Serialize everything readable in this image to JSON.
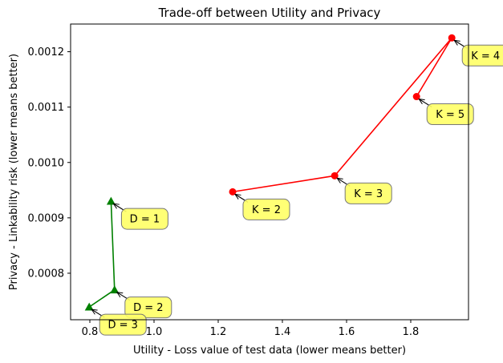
{
  "chart_data": {
    "type": "scatter",
    "title": "Trade-off between Utility and Privacy",
    "xlabel": "Utility - Loss value of test data (lower means better)",
    "ylabel": "Privacy - Linkability risk (lower means better)",
    "xlim": [
      0.74,
      1.98
    ],
    "ylim": [
      0.000716,
      0.00125
    ],
    "xticks": [
      0.8,
      1.0,
      1.2,
      1.4,
      1.6,
      1.8
    ],
    "xtick_labels": [
      "0.8",
      "1.0",
      "1.2",
      "1.4",
      "1.6",
      "1.8"
    ],
    "yticks": [
      0.0008,
      0.0009,
      0.001,
      0.0011,
      0.0012
    ],
    "ytick_labels": [
      "0.0008",
      "0.0009",
      "0.0010",
      "0.0011",
      "0.0012"
    ],
    "grid": false,
    "series": [
      {
        "marker": "circle",
        "color": "#ff0000",
        "points": [
          {
            "x": 1.245,
            "y": 0.000947,
            "label": "K = 2"
          },
          {
            "x": 1.563,
            "y": 0.000976,
            "label": "K = 3"
          },
          {
            "x": 1.928,
            "y": 0.001225,
            "label": "K = 4"
          },
          {
            "x": 1.818,
            "y": 0.001119,
            "label": "K = 5"
          }
        ]
      },
      {
        "marker": "triangle",
        "color": "#008000",
        "points": [
          {
            "x": 0.866,
            "y": 0.00093,
            "label": "D = 1"
          },
          {
            "x": 0.877,
            "y": 0.00077,
            "label": "D = 2"
          },
          {
            "x": 0.798,
            "y": 0.000739,
            "label": "D = 3"
          }
        ]
      }
    ],
    "annotation_style": {
      "box_fill": "#ffff66",
      "box_stroke": "#777777",
      "arrow_color": "#000000"
    }
  }
}
